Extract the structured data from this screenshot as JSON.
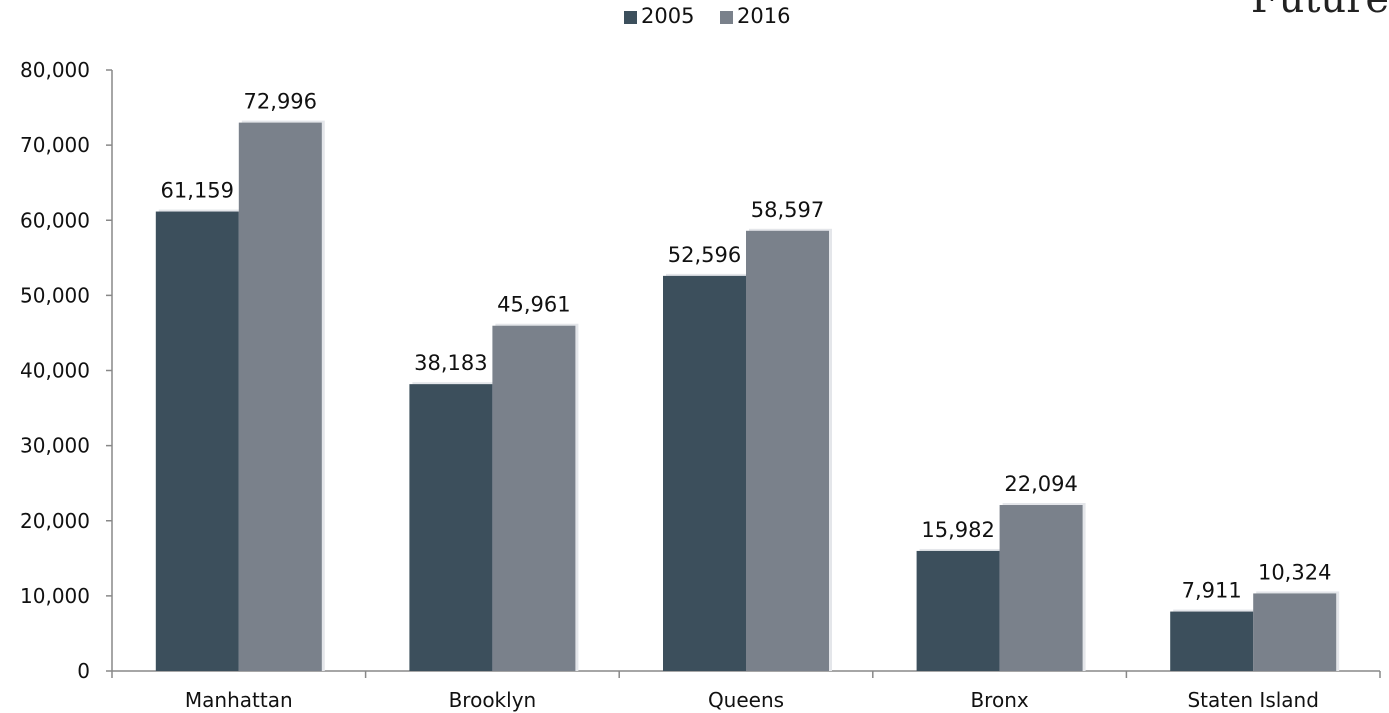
{
  "corner_text": "Future",
  "chart_data": {
    "type": "bar",
    "title": "",
    "xlabel": "",
    "ylabel": "",
    "categories": [
      "Manhattan",
      "Brooklyn",
      "Queens",
      "Bronx",
      "Staten Island"
    ],
    "series": [
      {
        "name": "2005",
        "color": "#3c4f5c",
        "values": [
          61159,
          38183,
          52596,
          15982,
          7911
        ]
      },
      {
        "name": "2016",
        "color": "#7a818b",
        "values": [
          72996,
          45961,
          58597,
          22094,
          10324
        ]
      }
    ],
    "data_labels": [
      [
        "61,159",
        "38,183",
        "52,596",
        "15,982",
        "7,911"
      ],
      [
        "72,996",
        "45,961",
        "58,597",
        "22,094",
        "10,324"
      ]
    ],
    "y_ticks": [
      0,
      10000,
      20000,
      30000,
      40000,
      50000,
      60000,
      70000,
      80000
    ],
    "y_tick_labels": [
      "0",
      "10,000",
      "20,000",
      "30,000",
      "40,000",
      "50,000",
      "60,000",
      "70,000",
      "80,000"
    ],
    "ylim": [
      0,
      80000
    ],
    "grid": false,
    "legend_position": "top-center"
  }
}
